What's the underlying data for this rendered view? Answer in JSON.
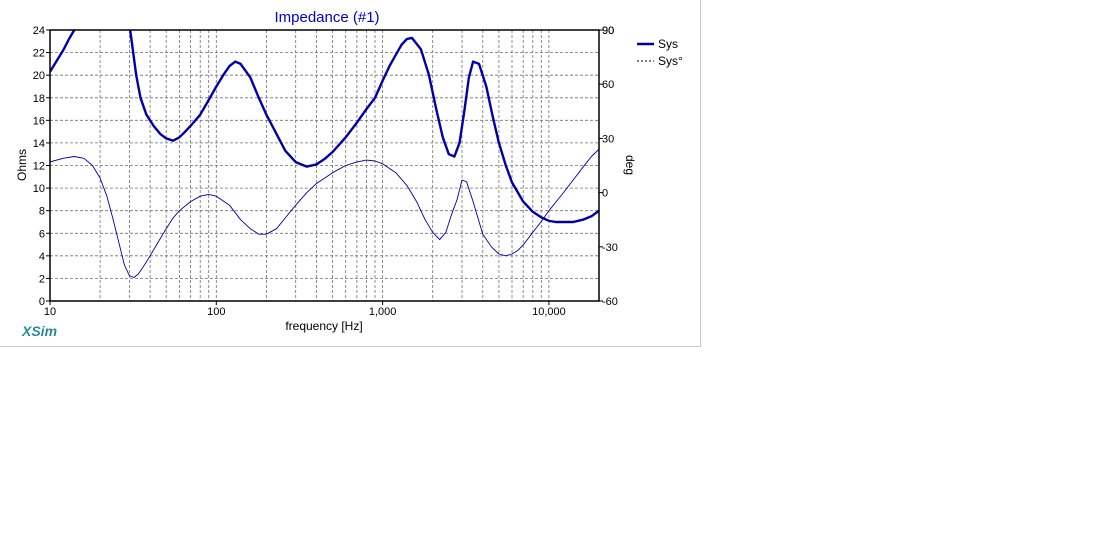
{
  "brand": "XSim",
  "colors": {
    "series": "#0000a8",
    "title": "#0000cc",
    "grid": "#707070",
    "brand": "#2a8a9a"
  },
  "chart_data": {
    "type": "line",
    "title": "Impedance (#1)",
    "xlabel": "frequency [Hz]",
    "ylabel": "Ohms",
    "y2label": "deg",
    "xscale": "log",
    "xlim": [
      10,
      20000
    ],
    "ylim": [
      0,
      24
    ],
    "y2lim": [
      -60,
      90
    ],
    "grid": true,
    "legend": "top-right",
    "x_ticks": [
      {
        "v": 10,
        "label": "10"
      },
      {
        "v": 100,
        "label": "100"
      },
      {
        "v": 1000,
        "label": "1,000"
      },
      {
        "v": 10000,
        "label": "10,000"
      }
    ],
    "y_ticks": [
      {
        "v": 0,
        "label": "0"
      },
      {
        "v": 2,
        "label": "2"
      },
      {
        "v": 4,
        "label": "4"
      },
      {
        "v": 6,
        "label": "6"
      },
      {
        "v": 8,
        "label": "8"
      },
      {
        "v": 10,
        "label": "10"
      },
      {
        "v": 12,
        "label": "12"
      },
      {
        "v": 14,
        "label": "14"
      },
      {
        "v": 16,
        "label": "16"
      },
      {
        "v": 18,
        "label": "18"
      },
      {
        "v": 20,
        "label": "20"
      },
      {
        "v": 22,
        "label": "22"
      },
      {
        "v": 24,
        "label": "24"
      }
    ],
    "y2_ticks": [
      {
        "v": -60,
        "label": "-60"
      },
      {
        "v": -30,
        "label": "-30"
      },
      {
        "v": 0,
        "label": "0"
      },
      {
        "v": 30,
        "label": "30"
      },
      {
        "v": 60,
        "label": "60"
      },
      {
        "v": 90,
        "label": "90"
      }
    ],
    "series": [
      {
        "name": "Sys",
        "axis": "left",
        "style": "thick",
        "x": [
          10,
          11,
          12,
          13,
          14,
          15
        ],
        "y": [
          20.3,
          21.3,
          22.2,
          23.2,
          24.0,
          24.5
        ]
      },
      {
        "name": "Sys",
        "axis": "left",
        "style": "thick",
        "x": [
          30,
          31,
          33,
          35,
          38,
          42,
          46,
          50,
          55,
          60,
          65,
          70,
          80,
          90,
          100,
          110,
          120,
          130,
          140,
          160,
          180,
          200,
          230,
          260,
          300,
          350,
          400,
          450,
          500,
          600,
          700,
          800,
          900,
          1000,
          1100,
          1200,
          1300,
          1400,
          1500,
          1700,
          1900,
          2100,
          2300,
          2500,
          2700,
          2900,
          3100,
          3300,
          3500,
          3800,
          4200,
          4600,
          5000,
          5500,
          6000,
          7000,
          8000,
          9000,
          10000,
          11000,
          12000,
          13000,
          14000,
          15000,
          16000,
          18000,
          20000
        ],
        "y": [
          24.5,
          23.0,
          20.0,
          18.0,
          16.5,
          15.5,
          14.8,
          14.4,
          14.2,
          14.5,
          15.0,
          15.5,
          16.5,
          17.8,
          19.0,
          20.0,
          20.8,
          21.2,
          21.0,
          19.8,
          18.0,
          16.5,
          14.8,
          13.3,
          12.3,
          11.9,
          12.1,
          12.6,
          13.2,
          14.5,
          15.8,
          17.0,
          18.0,
          19.5,
          20.8,
          21.8,
          22.7,
          23.2,
          23.3,
          22.3,
          20.0,
          17.0,
          14.5,
          13.0,
          12.8,
          14.0,
          16.8,
          19.8,
          21.2,
          21.0,
          19.0,
          16.3,
          14.0,
          12.0,
          10.5,
          8.8,
          7.9,
          7.4,
          7.1,
          7.0,
          7.0,
          7.0,
          7.0,
          7.1,
          7.2,
          7.5,
          8.0
        ]
      },
      {
        "name": "Sys°",
        "axis": "right",
        "style": "thin",
        "x": [
          10,
          12,
          14,
          16,
          18,
          20,
          22,
          24,
          26,
          28,
          30,
          32,
          34,
          37,
          40,
          45,
          50,
          55,
          60,
          70,
          80,
          90,
          100,
          120,
          140,
          160,
          180,
          200,
          230,
          260,
          300,
          350,
          400,
          500,
          600,
          700,
          800,
          900,
          1000,
          1200,
          1400,
          1600,
          1800,
          2000,
          2200,
          2400,
          2600,
          2800,
          3000,
          3200,
          3500,
          4000,
          4500,
          5000,
          5500,
          6000,
          6500,
          7000,
          8000,
          9000,
          10000,
          12000,
          14000,
          16000,
          18000,
          20000
        ],
        "y": [
          17,
          19,
          20,
          19,
          15,
          8,
          -2,
          -15,
          -28,
          -40,
          -46,
          -47,
          -45,
          -40,
          -35,
          -27,
          -20,
          -14,
          -10,
          -5,
          -2,
          -1,
          -2,
          -7,
          -15,
          -20,
          -23,
          -23,
          -20,
          -14,
          -7,
          0,
          5,
          11,
          15,
          17,
          18,
          17.5,
          16,
          11,
          4,
          -5,
          -15,
          -22,
          -26,
          -22,
          -12,
          -4,
          7,
          6,
          -5,
          -23,
          -30,
          -34,
          -35,
          -34,
          -32,
          -29,
          -22,
          -16,
          -10,
          -1,
          7,
          14,
          20,
          24
        ]
      }
    ]
  }
}
